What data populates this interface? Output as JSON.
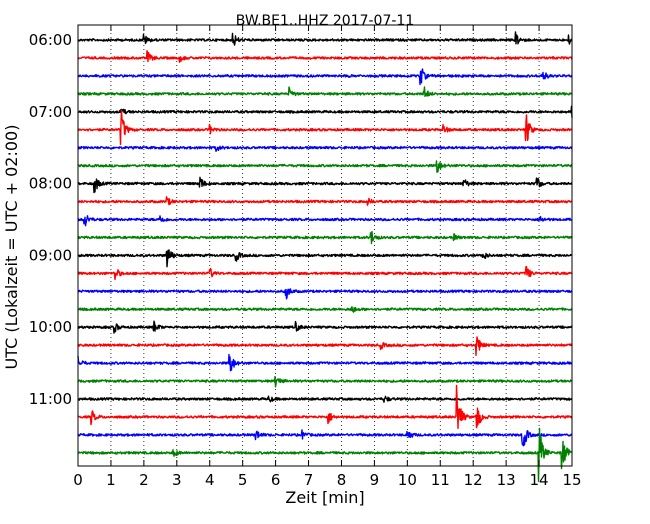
{
  "chart_data": {
    "type": "line",
    "title": "BW.BE1..HHZ 2017-07-11",
    "xlabel": "Zeit  [min]",
    "ylabel": "UTC (Lokalzeit = UTC + 02:00)",
    "xlim": [
      0,
      15
    ],
    "x_ticks": [
      "0",
      "1",
      "2",
      "3",
      "4",
      "5",
      "6",
      "7",
      "8",
      "9",
      "10",
      "11",
      "12",
      "13",
      "14",
      "15"
    ],
    "y_ticks": [
      "06:00",
      "07:00",
      "08:00",
      "09:00",
      "10:00",
      "11:00"
    ],
    "grid": "vertical dotted at each minute",
    "colors": [
      "#000000",
      "#ff0000",
      "#0000ff",
      "#008000"
    ],
    "traces": [
      {
        "start": "06:00",
        "events": [
          [
            2.0,
            0.5
          ],
          [
            4.7,
            0.8
          ],
          [
            13.3,
            0.7
          ],
          [
            14.9,
            0.5
          ]
        ]
      },
      {
        "start": "06:15",
        "events": [
          [
            2.1,
            0.6
          ],
          [
            3.1,
            0.3
          ]
        ]
      },
      {
        "start": "06:30",
        "events": [
          [
            10.4,
            1.0
          ],
          [
            14.1,
            0.6
          ]
        ]
      },
      {
        "start": "06:45",
        "events": [
          [
            6.4,
            0.6
          ],
          [
            10.5,
            0.7
          ]
        ]
      },
      {
        "start": "07:00",
        "events": [
          [
            1.3,
            0.4
          ],
          [
            15.0,
            1.0
          ]
        ]
      },
      {
        "start": "07:15",
        "events": [
          [
            1.3,
            2.1
          ],
          [
            4.0,
            0.4
          ],
          [
            11.1,
            0.4
          ],
          [
            13.6,
            1.7
          ]
        ]
      },
      {
        "start": "07:30",
        "events": [
          [
            4.2,
            0.3
          ]
        ]
      },
      {
        "start": "07:45",
        "events": [
          [
            10.9,
            0.8
          ]
        ]
      },
      {
        "start": "08:00",
        "events": [
          [
            0.5,
            0.9
          ],
          [
            3.7,
            0.7
          ],
          [
            11.7,
            0.6
          ],
          [
            13.9,
            0.9
          ]
        ]
      },
      {
        "start": "08:15",
        "events": [
          [
            2.7,
            0.4
          ],
          [
            8.8,
            0.3
          ]
        ]
      },
      {
        "start": "08:30",
        "events": [
          [
            0.2,
            0.8
          ],
          [
            2.5,
            0.4
          ],
          [
            14.0,
            0.4
          ]
        ]
      },
      {
        "start": "08:45",
        "events": [
          [
            8.9,
            0.7
          ],
          [
            11.4,
            0.3
          ]
        ]
      },
      {
        "start": "09:00",
        "events": [
          [
            2.7,
            1.2
          ],
          [
            4.8,
            0.5
          ],
          [
            12.3,
            0.4
          ]
        ]
      },
      {
        "start": "09:15",
        "events": [
          [
            1.1,
            0.9
          ],
          [
            4.0,
            0.5
          ],
          [
            13.6,
            0.8
          ]
        ]
      },
      {
        "start": "09:30",
        "events": [
          [
            6.3,
            0.9
          ]
        ]
      },
      {
        "start": "09:45",
        "events": [
          [
            8.3,
            0.4
          ]
        ]
      },
      {
        "start": "10:00",
        "events": [
          [
            1.1,
            0.5
          ],
          [
            2.3,
            0.6
          ],
          [
            6.6,
            0.5
          ]
        ]
      },
      {
        "start": "10:15",
        "events": [
          [
            9.2,
            0.3
          ],
          [
            12.1,
            1.0
          ]
        ]
      },
      {
        "start": "10:30",
        "events": [
          [
            0.0,
            0.6
          ],
          [
            4.6,
            1.3
          ]
        ]
      },
      {
        "start": "10:45",
        "events": [
          [
            6.0,
            0.6
          ]
        ]
      },
      {
        "start": "11:00",
        "events": [
          [
            5.8,
            0.3
          ],
          [
            9.3,
            0.3
          ]
        ]
      },
      {
        "start": "11:15",
        "events": [
          [
            0.4,
            0.7
          ],
          [
            7.6,
            0.6
          ],
          [
            11.5,
            3.0
          ],
          [
            12.1,
            1.5
          ]
        ]
      },
      {
        "start": "11:30",
        "events": [
          [
            5.4,
            0.5
          ],
          [
            6.8,
            0.4
          ],
          [
            10.0,
            0.6
          ],
          [
            13.5,
            1.6
          ]
        ]
      },
      {
        "start": "11:45",
        "events": [
          [
            2.9,
            0.4
          ],
          [
            14.0,
            2.7
          ],
          [
            14.7,
            1.8
          ]
        ]
      }
    ]
  }
}
